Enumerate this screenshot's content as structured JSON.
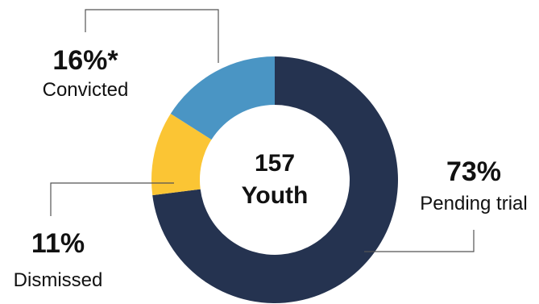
{
  "chart_data": {
    "type": "pie",
    "style": "donut",
    "center_label": {
      "number": "157",
      "unit": "Youth"
    },
    "slices": [
      {
        "label": "Pending trial",
        "value": 73,
        "value_label": "73%",
        "color": "#253350"
      },
      {
        "label": "Dismissed",
        "value": 11,
        "value_label": "11%",
        "color": "#FBC534"
      },
      {
        "label": "Convicted",
        "value": 16,
        "value_label": "16%*",
        "color": "#4A95C4"
      }
    ]
  }
}
